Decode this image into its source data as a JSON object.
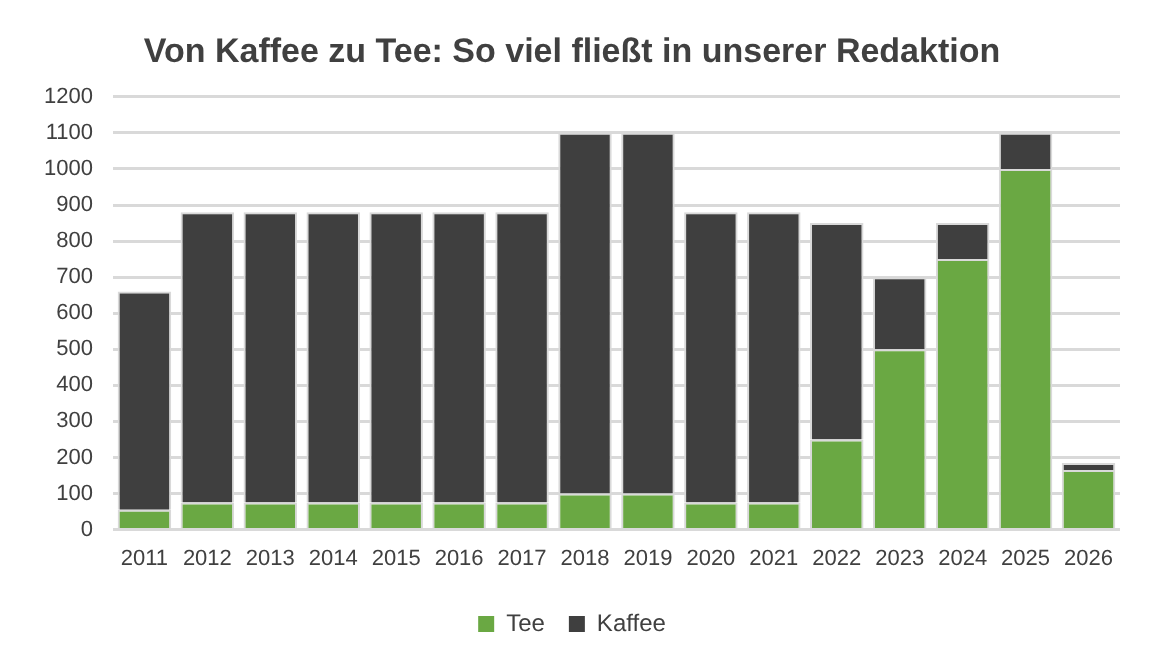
{
  "chart_data": {
    "type": "bar",
    "title": "Von Kaffee zu Tee: So viel fließt in unserer Redaktion",
    "categories": [
      "2011",
      "2012",
      "2013",
      "2014",
      "2015",
      "2016",
      "2017",
      "2018",
      "2019",
      "2020",
      "2021",
      "2022",
      "2023",
      "2024",
      "2025",
      "2026"
    ],
    "stacked": true,
    "series": [
      {
        "name": "Tee",
        "color": "#6aa843",
        "values": [
          55,
          75,
          75,
          75,
          75,
          75,
          75,
          100,
          100,
          75,
          75,
          250,
          500,
          750,
          1000,
          165
        ]
      },
      {
        "name": "Kaffee",
        "color": "#3f3f3f",
        "values": [
          605,
          805,
          805,
          805,
          805,
          805,
          805,
          1000,
          1000,
          805,
          805,
          600,
          200,
          100,
          100,
          20
        ]
      }
    ],
    "ylim": [
      0,
      1200
    ],
    "yticks": [
      0,
      100,
      200,
      300,
      400,
      500,
      600,
      700,
      800,
      900,
      1000,
      1100,
      1200
    ],
    "grid": "y",
    "legend": "bottom"
  }
}
